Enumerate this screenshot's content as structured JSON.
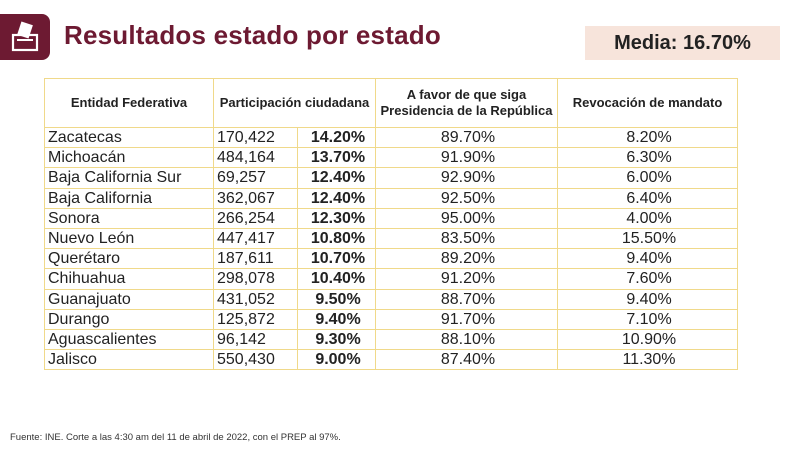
{
  "header": {
    "title": "Resultados estado por estado",
    "media_label": "Media: 16.70%",
    "logo_icon": "ballot-box-icon"
  },
  "table": {
    "headers": {
      "entidad": "Entidad Federativa",
      "participacion": "Participación ciudadana",
      "favor": "A favor de que siga Presidencia de la República",
      "revocacion": "Revocación de mandato"
    },
    "rows": [
      {
        "state": "Zacatecas",
        "votes": "170,422",
        "participation": "14.20%",
        "favor": "89.70%",
        "revocation": "8.20%"
      },
      {
        "state": "Michoacán",
        "votes": "484,164",
        "participation": "13.70%",
        "favor": "91.90%",
        "revocation": "6.30%"
      },
      {
        "state": "Baja California Sur",
        "votes": "69,257",
        "participation": "12.40%",
        "favor": "92.90%",
        "revocation": "6.00%"
      },
      {
        "state": "Baja California",
        "votes": "362,067",
        "participation": "12.40%",
        "favor": "92.50%",
        "revocation": "6.40%"
      },
      {
        "state": "Sonora",
        "votes": "266,254",
        "participation": "12.30%",
        "favor": "95.00%",
        "revocation": "4.00%"
      },
      {
        "state": "Nuevo León",
        "votes": "447,417",
        "participation": "10.80%",
        "favor": "83.50%",
        "revocation": "15.50%"
      },
      {
        "state": "Querétaro",
        "votes": "187,611",
        "participation": "10.70%",
        "favor": "89.20%",
        "revocation": "9.40%"
      },
      {
        "state": "Chihuahua",
        "votes": "298,078",
        "participation": "10.40%",
        "favor": "91.20%",
        "revocation": "7.60%"
      },
      {
        "state": "Guanajuato",
        "votes": "431,052",
        "participation": "9.50%",
        "favor": "88.70%",
        "revocation": "9.40%"
      },
      {
        "state": "Durango",
        "votes": "125,872",
        "participation": "9.40%",
        "favor": "91.70%",
        "revocation": "7.10%"
      },
      {
        "state": "Aguascalientes",
        "votes": "96,142",
        "participation": "9.30%",
        "favor": "88.10%",
        "revocation": "10.90%"
      },
      {
        "state": "Jalisco",
        "votes": "550,430",
        "participation": "9.00%",
        "favor": "87.40%",
        "revocation": "11.30%"
      }
    ]
  },
  "footer": {
    "source": "Fuente: INE. Corte a las 4:30 am del 11 de abril de 2022, con el PREP al 97%."
  },
  "colors": {
    "brand": "#6d1a32",
    "media_bg": "#f7e4db",
    "table_border": "#f0d98a"
  }
}
